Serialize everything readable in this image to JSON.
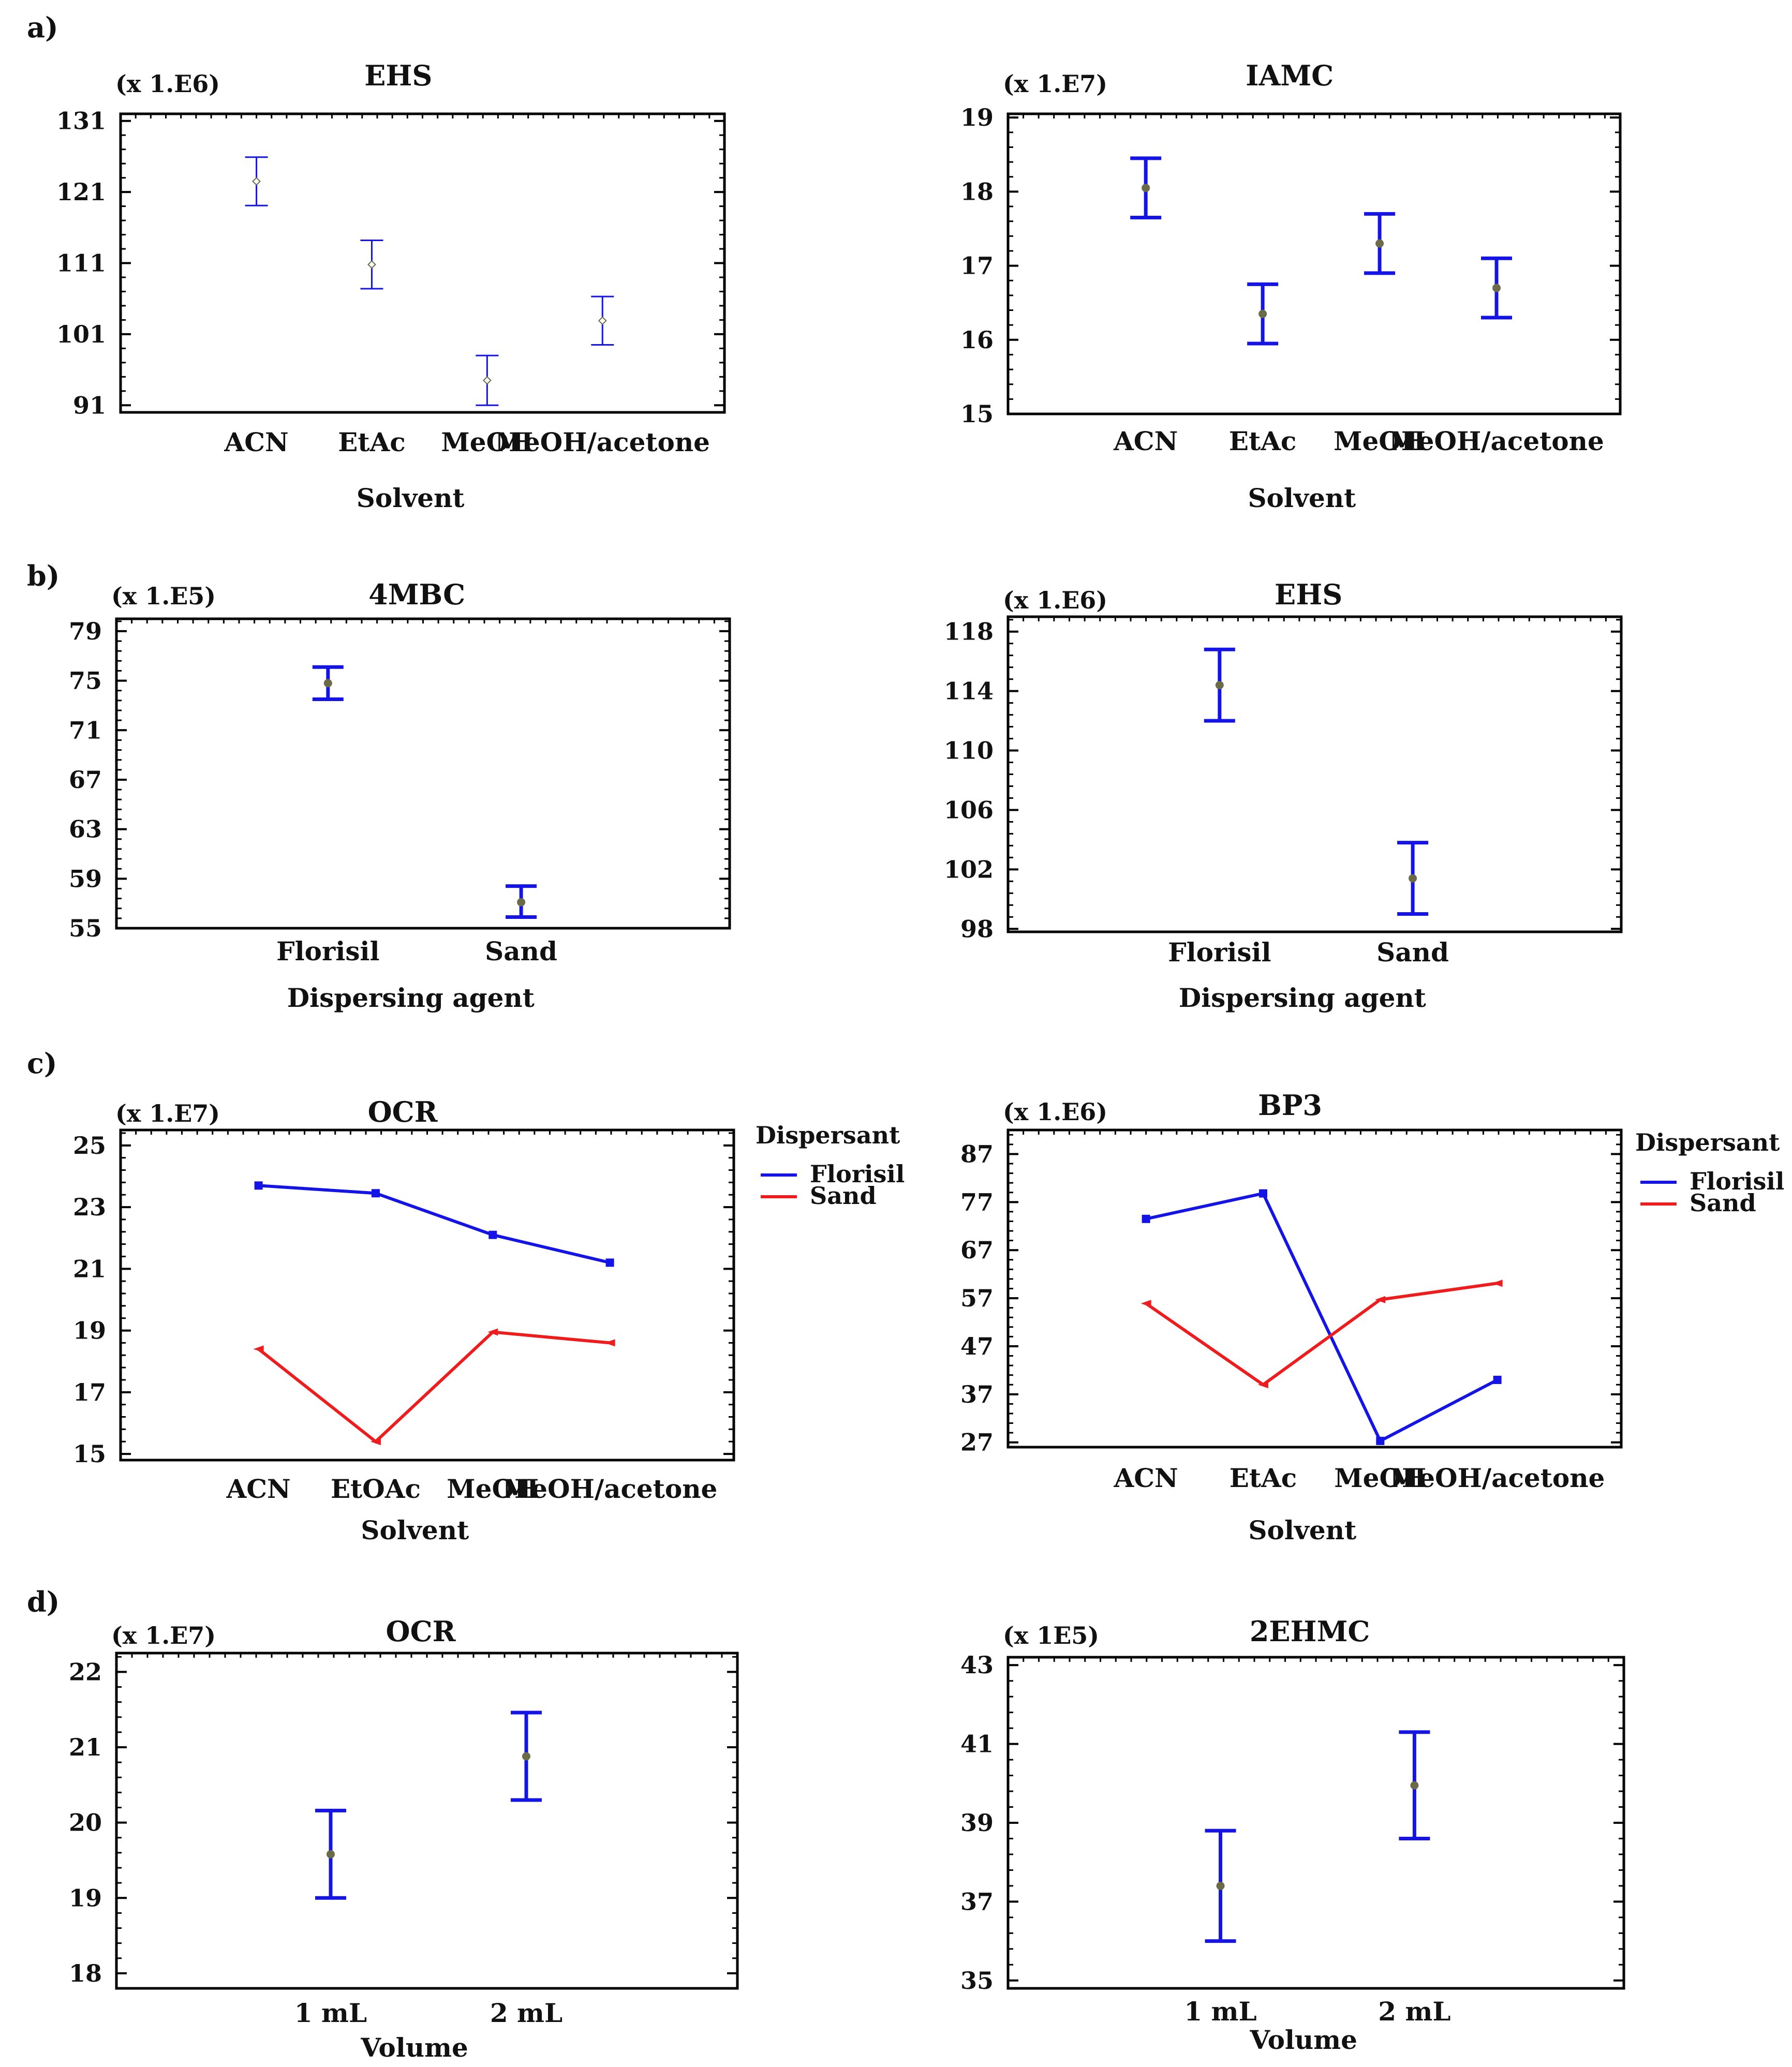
{
  "figure": {
    "panel_labels": [
      "a)",
      "b)",
      "c)",
      "d)"
    ],
    "colors": {
      "blue": "#1414e6",
      "red": "#ee1c1c",
      "axis": "#000000",
      "point": "#6b6b4a"
    }
  },
  "chart_data": [
    {
      "id": "a1",
      "type": "errorbar",
      "title": "EHS",
      "multiplier": "(x 1.E6)",
      "xlabel": "Solvent",
      "ylabel": "",
      "categories": [
        "ACN",
        "EtAc",
        "MeOH",
        "MeOH/acetone"
      ],
      "means": [
        122.5,
        110.8,
        94.5,
        102.9
      ],
      "lower": [
        119.1,
        107.4,
        91.0,
        99.5
      ],
      "upper": [
        125.9,
        114.2,
        98.0,
        106.3
      ],
      "ylim": [
        90,
        132
      ],
      "yticks": [
        91,
        101,
        111,
        121,
        131
      ],
      "style": "thin"
    },
    {
      "id": "a2",
      "type": "errorbar",
      "title": "IAMC",
      "multiplier": "(x 1.E7)",
      "xlabel": "Solvent",
      "ylabel": "",
      "categories": [
        "ACN",
        "EtAc",
        "MeOH",
        "MeOH/acetone"
      ],
      "means": [
        18.05,
        16.35,
        17.3,
        16.7
      ],
      "lower": [
        17.65,
        15.95,
        16.9,
        16.3
      ],
      "upper": [
        18.45,
        16.75,
        17.7,
        17.1
      ],
      "ylim": [
        15,
        19.05
      ],
      "yticks": [
        15,
        16,
        17,
        18,
        19
      ],
      "style": "thick"
    },
    {
      "id": "b1",
      "type": "errorbar",
      "title": "4MBC",
      "multiplier": "(x 1.E5)",
      "xlabel": "Dispersing agent",
      "ylabel": "",
      "categories": [
        "Florisil",
        "Sand"
      ],
      "means": [
        74.8,
        57.1
      ],
      "lower": [
        73.5,
        55.9
      ],
      "upper": [
        76.1,
        58.4
      ],
      "ylim": [
        55,
        80
      ],
      "yticks": [
        55,
        59,
        63,
        67,
        71,
        75,
        79
      ],
      "style": "thick"
    },
    {
      "id": "b2",
      "type": "errorbar",
      "title": "EHS",
      "multiplier": "(x 1.E6)",
      "xlabel": "Dispersing agent",
      "ylabel": "",
      "categories": [
        "Florisil",
        "Sand"
      ],
      "means": [
        114.4,
        101.4
      ],
      "lower": [
        112.0,
        99.0
      ],
      "upper": [
        116.8,
        103.8
      ],
      "ylim": [
        97.8,
        119
      ],
      "yticks": [
        98,
        102,
        106,
        110,
        114,
        118
      ],
      "style": "thick"
    },
    {
      "id": "c1",
      "type": "line",
      "title": "OCR",
      "multiplier": "(x 1.E7)",
      "xlabel": "Solvent",
      "ylabel": "",
      "categories": [
        "ACN",
        "EtOAc",
        "MeOH",
        "MeOH/acetone"
      ],
      "legend_title": "Dispersant",
      "series": [
        {
          "name": "Florisil",
          "color": "#1414e6",
          "values": [
            23.7,
            23.45,
            22.1,
            21.2
          ]
        },
        {
          "name": "Sand",
          "color": "#ee1c1c",
          "values": [
            18.4,
            15.4,
            18.95,
            18.6
          ]
        }
      ],
      "ylim": [
        14.8,
        25.5
      ],
      "yticks": [
        15,
        17,
        19,
        21,
        23,
        25
      ]
    },
    {
      "id": "c2",
      "type": "line",
      "title": "BP3",
      "multiplier": "(x 1.E6)",
      "xlabel": "Solvent",
      "ylabel": "",
      "categories": [
        "ACN",
        "EtAc",
        "MeOH",
        "MeOH/acetone"
      ],
      "legend_title": "Dispersant",
      "series": [
        {
          "name": "Florisil",
          "color": "#1414e6",
          "values": [
            73.5,
            78.8,
            27.3,
            40.0
          ]
        },
        {
          "name": "Sand",
          "color": "#ee1c1c",
          "values": [
            55.9,
            39.0,
            56.7,
            60.1
          ]
        }
      ],
      "ylim": [
        26,
        92
      ],
      "yticks": [
        27,
        37,
        47,
        57,
        67,
        77,
        87
      ]
    },
    {
      "id": "d1",
      "type": "errorbar",
      "title": "OCR",
      "multiplier": "(x 1.E7)",
      "xlabel": "Volume",
      "ylabel": "",
      "categories": [
        "1 mL",
        "2 mL"
      ],
      "means": [
        19.58,
        20.88
      ],
      "lower": [
        19.0,
        20.3
      ],
      "upper": [
        20.16,
        21.46
      ],
      "ylim": [
        17.8,
        22.25
      ],
      "yticks": [
        18,
        19,
        20,
        21,
        22
      ],
      "style": "thick"
    },
    {
      "id": "d2",
      "type": "errorbar",
      "title": "2EHMC",
      "multiplier": "(x 1E5)",
      "xlabel": "Volume",
      "ylabel": "",
      "categories": [
        "1 mL",
        "2 mL"
      ],
      "means": [
        37.4,
        39.95
      ],
      "lower": [
        36.0,
        38.6
      ],
      "upper": [
        38.8,
        41.3
      ],
      "ylim": [
        34.8,
        43.2
      ],
      "yticks": [
        35,
        37,
        39,
        41,
        43
      ],
      "style": "thick"
    }
  ]
}
